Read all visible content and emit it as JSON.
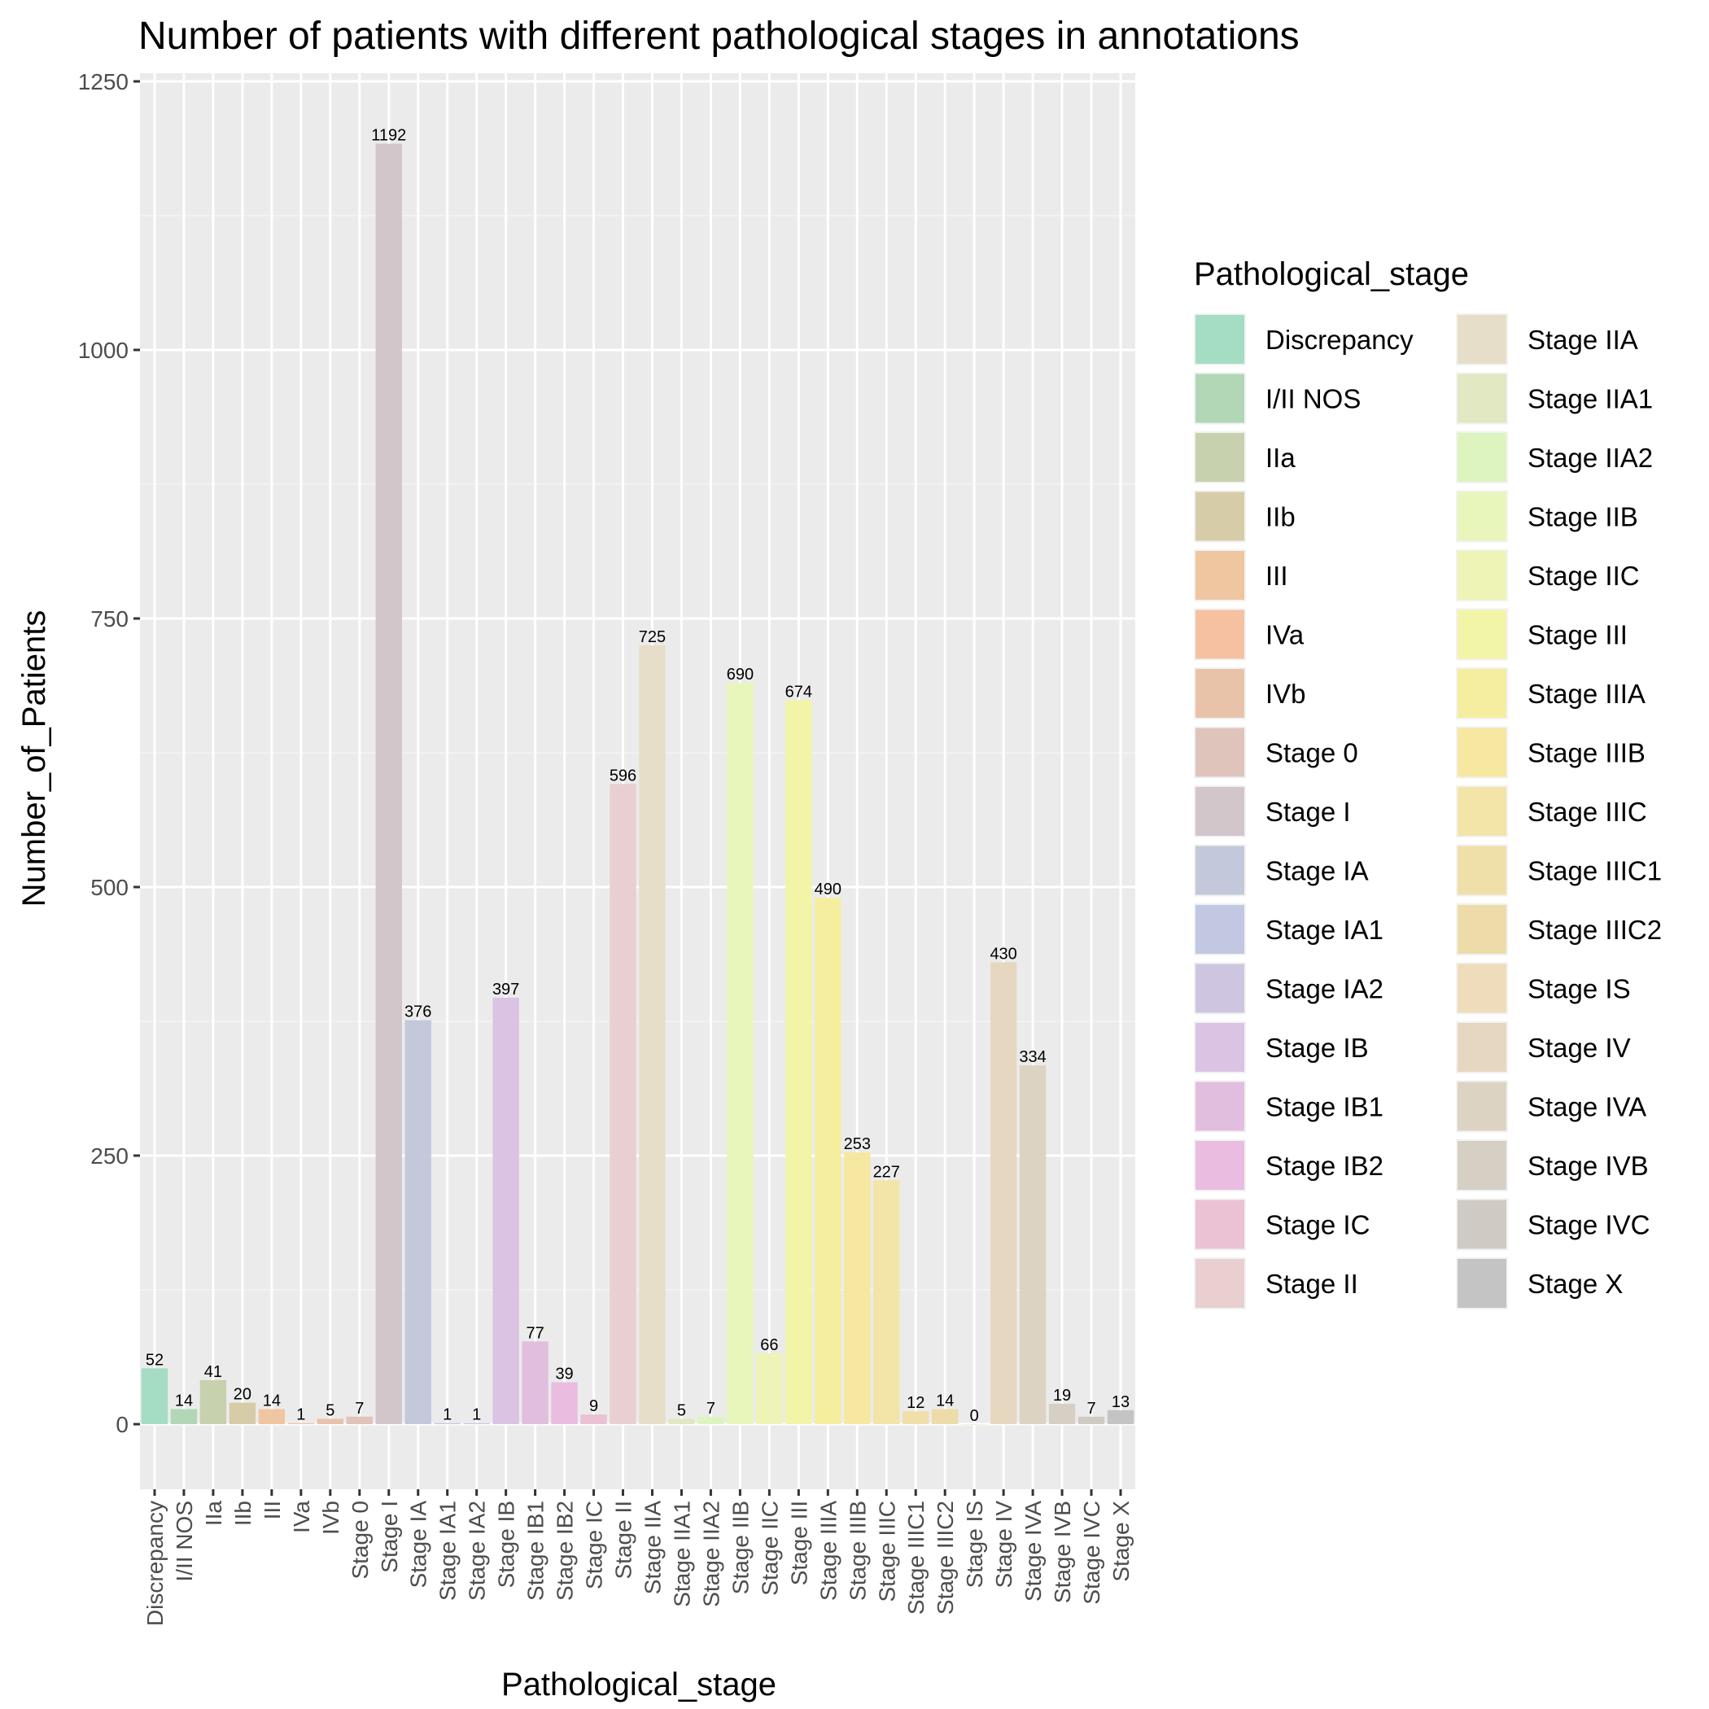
{
  "chart_data": {
    "type": "bar",
    "title": "Number of patients with different pathological stages in annotations",
    "xlabel": "Pathological_stage",
    "ylabel": "Number_of_Patients",
    "ylim": [
      -60,
      1250
    ],
    "yticks": [
      0,
      250,
      500,
      750,
      1000,
      1250
    ],
    "grid": true,
    "legend_position": "right",
    "legend_title": "Pathological_stage",
    "categories": [
      "Discrepancy",
      "I/II NOS",
      "IIa",
      "IIb",
      "III",
      "IVa",
      "IVb",
      "Stage 0",
      "Stage I",
      "Stage IA",
      "Stage IA1",
      "Stage IA2",
      "Stage IB",
      "Stage IB1",
      "Stage IB2",
      "Stage IC",
      "Stage II",
      "Stage IIA",
      "Stage IIA1",
      "Stage IIA2",
      "Stage IIB",
      "Stage IIC",
      "Stage III",
      "Stage IIIA",
      "Stage IIIB",
      "Stage IIIC",
      "Stage IIIC1",
      "Stage IIIC2",
      "Stage IS",
      "Stage IV",
      "Stage IVA",
      "Stage IVB",
      "Stage IVC",
      "Stage X"
    ],
    "values": [
      52,
      14,
      41,
      20,
      14,
      1,
      5,
      7,
      1192,
      376,
      1,
      1,
      397,
      77,
      39,
      9,
      596,
      725,
      5,
      7,
      690,
      66,
      674,
      490,
      253,
      227,
      12,
      14,
      0,
      430,
      334,
      19,
      7,
      13
    ],
    "colors": [
      "#a4dcc4",
      "#b2d7b6",
      "#c7d1ae",
      "#d7cca8",
      "#efc6a0",
      "#f5c1a0",
      "#e9c2aa",
      "#dfc4bc",
      "#d3c6ca",
      "#c3c9da",
      "#c2c7e2",
      "#cec6e0",
      "#dbc3e3",
      "#e2bede",
      "#e9bce0",
      "#eac2d3",
      "#e9cfd0",
      "#e6dec8",
      "#e1e8c2",
      "#def4be",
      "#e8f6bc",
      "#eef4b6",
      "#f2f4a8",
      "#f5ee9e",
      "#f6e8a0",
      "#f3e4a8",
      "#efe0aa",
      "#eddcaa",
      "#eedcba",
      "#e6d8c0",
      "#dcd3c2",
      "#d6cfc4",
      "#cfcbc4",
      "#c4c4c4"
    ]
  }
}
